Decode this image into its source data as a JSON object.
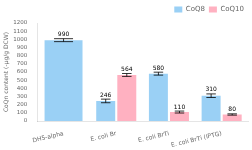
{
  "chart_data": {
    "type": "bar",
    "categories": [
      "DH5-alpha",
      "E. coli Br",
      "E. coli BrTi",
      "E. coli BrTi (IPTG)"
    ],
    "series": [
      {
        "name": "CoQ8",
        "values": [
          990,
          246,
          580,
          310
        ],
        "errors": [
          18,
          22,
          18,
          22
        ]
      },
      {
        "name": "CoQ10",
        "values": [
          null,
          564,
          110,
          80
        ],
        "errors": [
          null,
          18,
          12,
          8
        ]
      }
    ],
    "ylabel": "CoQn content (-μg/g DCW)",
    "ylim": [
      0,
      1200
    ],
    "yticks": [
      0,
      100,
      200,
      300,
      400,
      500,
      600,
      700,
      800,
      900,
      1000,
      1100,
      1200
    ],
    "legend": "upper right",
    "grid": false,
    "data_labels": true
  }
}
